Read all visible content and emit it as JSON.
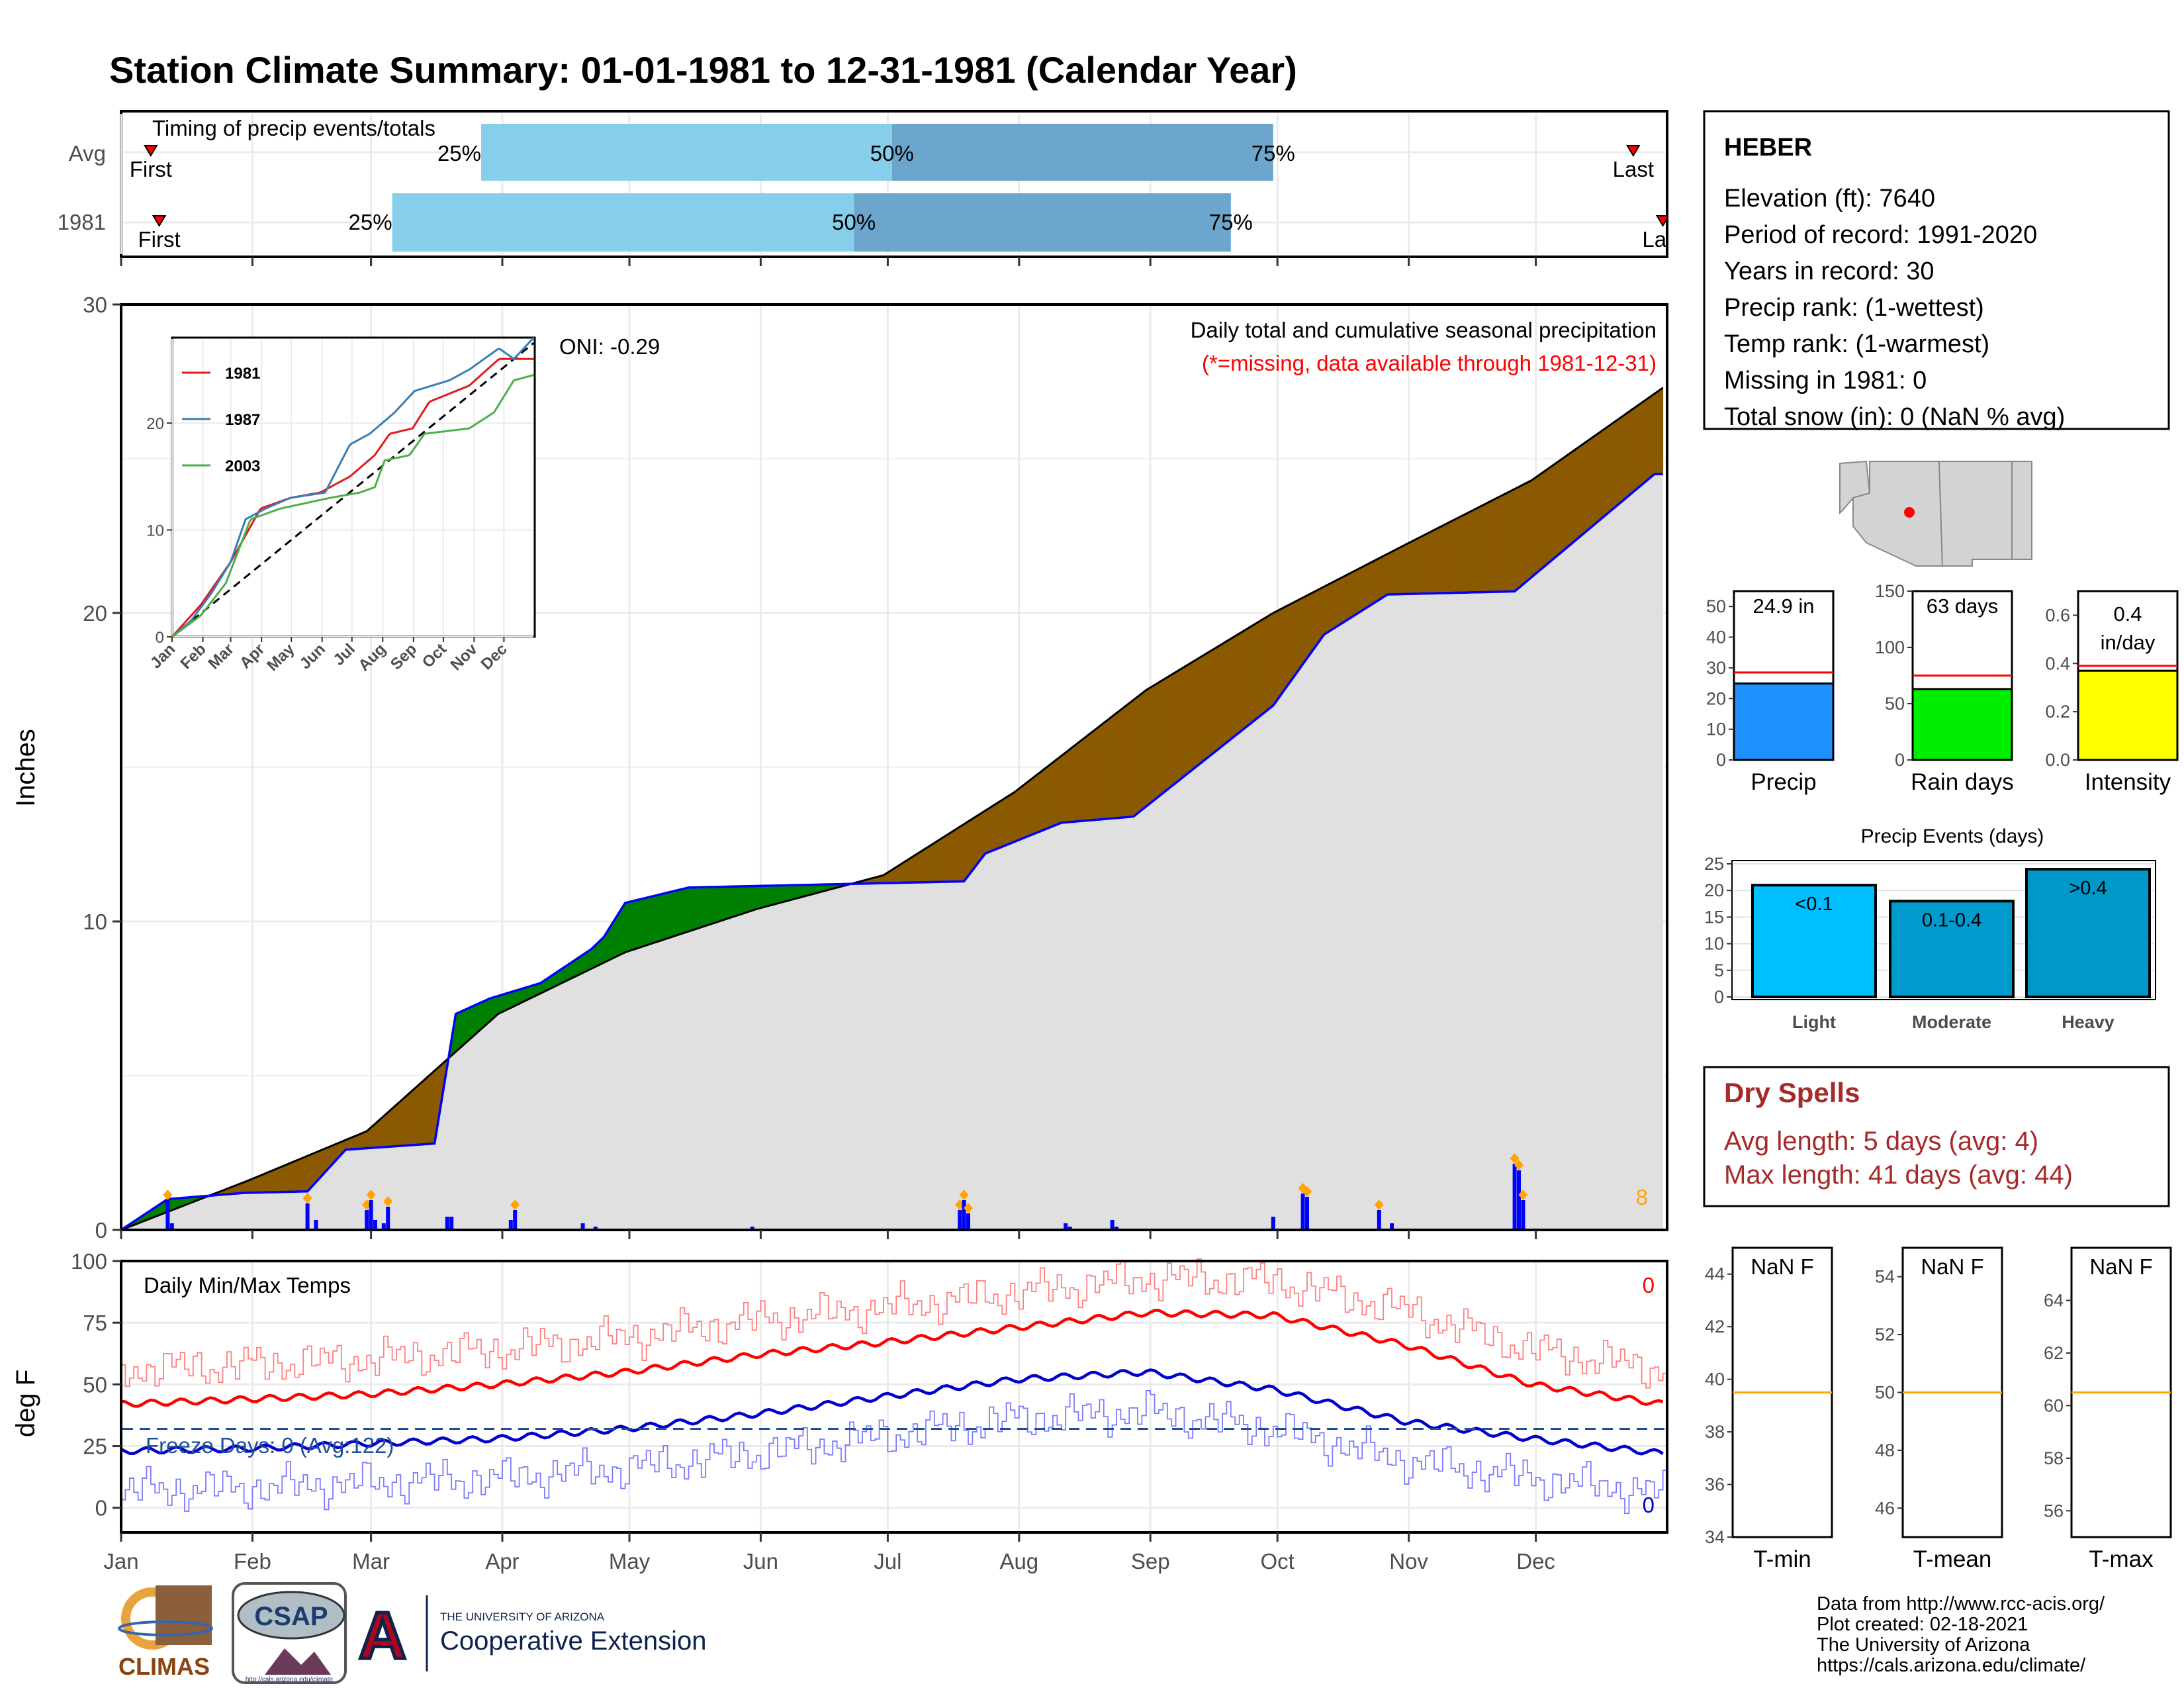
{
  "title": "Station Climate Summary: 01-01-1981 to 12-31-1981 (Calendar Year)",
  "colors": {
    "title": "#000080",
    "q1_bar": "#87CEEB",
    "q2_bar": "#6CA6CD",
    "gray_fill": "#E0E0E0",
    "deficit": "#8B5A00",
    "surplus": "#008000",
    "obs_line": "#0000FF",
    "tmax": "#FF0000",
    "tmin": "#0000CD",
    "dry_spells": "#A52A2A",
    "avg_line": "#FFA500"
  },
  "timing_panel": {
    "title": "Timing of precip events/totals",
    "rows": [
      {
        "label": "Avg",
        "first": "First",
        "last": "Last",
        "q25": "25%",
        "q50": "50%",
        "q75": "75%",
        "first_day": 8,
        "last_day": 358,
        "q25_day": 86,
        "q50_day": 183,
        "q75_day": 273
      },
      {
        "label": "1981",
        "first": "First",
        "last": "Last",
        "q25": "25%",
        "q50": "50%",
        "q75": "75%",
        "first_day": 10,
        "last_day": 365,
        "q25_day": 65,
        "q50_day": 174,
        "q75_day": 263
      }
    ]
  },
  "precip_panel": {
    "ylabel": "Inches",
    "y_ticks": [
      "0",
      "10",
      "20",
      "30"
    ],
    "ylim": [
      0,
      30
    ],
    "subtitle": "Daily total and cumulative seasonal precipitation",
    "missing_note": "(*=missing, data available through 1981-12-31)",
    "oni": "ONI: -0.29",
    "corner_count": "8"
  },
  "inset": {
    "y_ticks": [
      "0",
      "10",
      "20"
    ],
    "ylim": [
      0,
      28
    ],
    "x_ticks": [
      "Jan",
      "Feb",
      "Mar",
      "Apr",
      "May",
      "Jun",
      "Jul",
      "Aug",
      "Sep",
      "Oct",
      "Nov",
      "Dec"
    ],
    "legend": [
      {
        "name": "1981",
        "color": "#E41A1C"
      },
      {
        "name": "1987",
        "color": "#377EB8"
      },
      {
        "name": "2003",
        "color": "#4DAF4A"
      }
    ]
  },
  "temp_panel": {
    "ylabel": "deg F",
    "title": "Daily Min/Max Temps",
    "y_ticks": [
      "0",
      "25",
      "50",
      "75",
      "100"
    ],
    "ylim": [
      -10,
      100
    ],
    "freeze_label": "Freeze Days: 0 (Avg:122)",
    "tmax_count": "0",
    "tmin_count": "0",
    "freeze_line": 32
  },
  "months": [
    "Jan",
    "Feb",
    "Mar",
    "Apr",
    "May",
    "Jun",
    "Jul",
    "Aug",
    "Sep",
    "Oct",
    "Nov",
    "Dec"
  ],
  "station": {
    "name": "HEBER",
    "lines": [
      "Elevation (ft): 7640",
      "Period of record: 1991-2020",
      "Years in record: 30",
      "Precip rank:  (1-wettest)",
      "Temp rank:  (1-warmest)",
      "Missing in 1981: 0",
      "Total snow (in): 0 (NaN % avg)"
    ]
  },
  "summary_bars": [
    {
      "label": "Precip",
      "value_text": "24.9 in",
      "value": 24.9,
      "avg": 28.5,
      "ylim": [
        0,
        55
      ],
      "ticks": [
        "0",
        "10",
        "20",
        "30",
        "40",
        "50"
      ],
      "tick_vals": [
        0,
        10,
        20,
        30,
        40,
        50
      ],
      "color": "#1E90FF"
    },
    {
      "label": "Rain days",
      "value_text": "63 days",
      "value": 63,
      "avg": 75,
      "ylim": [
        0,
        150
      ],
      "ticks": [
        "0",
        "50",
        "100",
        "150"
      ],
      "tick_vals": [
        0,
        50,
        100,
        150
      ],
      "color": "#00EE00"
    },
    {
      "label": "Intensity",
      "value_text": "0.4 in/day",
      "value_line1": "0.4",
      "value_line2": "in/day",
      "value": 0.37,
      "avg": 0.39,
      "ylim": [
        0,
        0.7
      ],
      "ticks": [
        "0.0",
        "0.2",
        "0.4",
        "0.6"
      ],
      "tick_vals": [
        0,
        0.2,
        0.4,
        0.6
      ],
      "color": "#FFFF00"
    }
  ],
  "precip_events": {
    "title": "Precip Events (days)",
    "y_ticks": [
      "0",
      "5",
      "10",
      "15",
      "20",
      "25"
    ],
    "bars": [
      {
        "label": "Light",
        "value_text": "<0.1",
        "value": 21,
        "color": "#00BFFF"
      },
      {
        "label": "Moderate",
        "value_text": "0.1-0.4",
        "value": 18,
        "color": "#009ACD"
      },
      {
        "label": "Heavy",
        "value_text": ">0.4",
        "value": 24,
        "color": "#0098C8"
      }
    ]
  },
  "dry_spells": {
    "title": "Dry Spells",
    "avg_length": "Avg length: 5 days (avg: 4)",
    "max_length": "Max length: 41 days (avg: 44)"
  },
  "temp_boxes": [
    {
      "label": "T-min",
      "value_text": "NaN F",
      "ticks": [
        "34",
        "36",
        "38",
        "40",
        "42",
        "44"
      ],
      "tick_vals": [
        34,
        36,
        38,
        40,
        42,
        44
      ],
      "ylim": [
        34,
        45
      ],
      "avg": 39.5
    },
    {
      "label": "T-mean",
      "value_text": "NaN F",
      "ticks": [
        "46",
        "48",
        "50",
        "52",
        "54"
      ],
      "tick_vals": [
        46,
        48,
        50,
        52,
        54
      ],
      "ylim": [
        45,
        55
      ],
      "avg": 50.0
    },
    {
      "label": "T-max",
      "value_text": "NaN F",
      "ticks": [
        "56",
        "58",
        "60",
        "62",
        "64"
      ],
      "tick_vals": [
        56,
        58,
        60,
        62,
        64
      ],
      "ylim": [
        55,
        66
      ],
      "avg": 60.5
    }
  ],
  "footer": {
    "lines": [
      "Data from http://www.rcc-acis.org/",
      "Plot created: 02-18-2021",
      "The University of Arizona",
      "https://cals.arizona.edu/climate/"
    ]
  },
  "logos": {
    "climas": "CLIMAS",
    "csap": "CSAP",
    "csap_url": "http://cals.arizona.edu/climate",
    "ua_line1": "THE UNIVERSITY OF ARIZONA",
    "ua_line2": "Cooperative Extension",
    "ua_letter": "A"
  },
  "chart_data": {
    "type": "area",
    "title": "Daily total and cumulative seasonal precipitation",
    "ylabel": "Inches",
    "ylim": [
      0,
      30
    ],
    "normal_cumulative": [
      [
        1,
        0
      ],
      [
        31,
        1.6
      ],
      [
        59,
        3.2
      ],
      [
        90,
        7.0
      ],
      [
        120,
        9.0
      ],
      [
        151,
        10.4
      ],
      [
        181,
        11.5
      ],
      [
        212,
        14.2
      ],
      [
        243,
        17.5
      ],
      [
        273,
        20.0
      ],
      [
        304,
        22.2
      ],
      [
        334,
        24.3
      ],
      [
        365,
        27.3
      ]
    ],
    "observed_cumulative": [
      [
        1,
        0
      ],
      [
        12,
        1.0
      ],
      [
        30,
        1.2
      ],
      [
        45,
        1.25
      ],
      [
        54,
        2.6
      ],
      [
        75,
        2.8
      ],
      [
        80,
        7.0
      ],
      [
        88,
        7.5
      ],
      [
        100,
        8.0
      ],
      [
        112,
        9.1
      ],
      [
        115,
        9.5
      ],
      [
        120,
        10.6
      ],
      [
        135,
        11.1
      ],
      [
        200,
        11.3
      ],
      [
        205,
        12.2
      ],
      [
        223,
        13.2
      ],
      [
        240,
        13.4
      ],
      [
        273,
        17.0
      ],
      [
        285,
        19.3
      ],
      [
        300,
        20.6
      ],
      [
        330,
        20.7
      ],
      [
        363,
        24.5
      ],
      [
        365,
        24.5
      ]
    ],
    "daily_precip": [
      [
        12,
        0.9
      ],
      [
        13,
        0.2
      ],
      [
        45,
        0.8
      ],
      [
        47,
        0.3
      ],
      [
        59,
        0.6
      ],
      [
        60,
        0.9
      ],
      [
        61,
        0.3
      ],
      [
        63,
        0.2
      ],
      [
        64,
        0.7
      ],
      [
        78,
        0.4
      ],
      [
        79,
        0.4
      ],
      [
        93,
        0.3
      ],
      [
        94,
        0.6
      ],
      [
        110,
        0.2
      ],
      [
        113,
        0.1
      ],
      [
        150,
        0.1
      ],
      [
        199,
        0.6
      ],
      [
        200,
        0.9
      ],
      [
        201,
        0.5
      ],
      [
        224,
        0.2
      ],
      [
        225,
        0.1
      ],
      [
        235,
        0.3
      ],
      [
        236,
        0.1
      ],
      [
        273,
        0.4
      ],
      [
        280,
        1.1
      ],
      [
        281,
        1.0
      ],
      [
        298,
        0.6
      ],
      [
        301,
        0.2
      ],
      [
        330,
        2.0
      ],
      [
        331,
        1.8
      ],
      [
        332,
        0.9
      ]
    ],
    "tmax_smooth": [
      [
        1,
        42
      ],
      [
        31,
        44
      ],
      [
        59,
        46
      ],
      [
        90,
        50
      ],
      [
        120,
        55
      ],
      [
        151,
        62
      ],
      [
        181,
        67
      ],
      [
        212,
        73
      ],
      [
        243,
        79
      ],
      [
        273,
        78
      ],
      [
        304,
        66
      ],
      [
        334,
        50
      ],
      [
        365,
        42
      ]
    ],
    "tmin_smooth": [
      [
        1,
        23
      ],
      [
        31,
        24
      ],
      [
        59,
        26
      ],
      [
        90,
        28
      ],
      [
        120,
        32
      ],
      [
        151,
        38
      ],
      [
        181,
        45
      ],
      [
        212,
        52
      ],
      [
        243,
        55
      ],
      [
        273,
        48
      ],
      [
        304,
        35
      ],
      [
        334,
        28
      ],
      [
        365,
        22
      ]
    ]
  }
}
